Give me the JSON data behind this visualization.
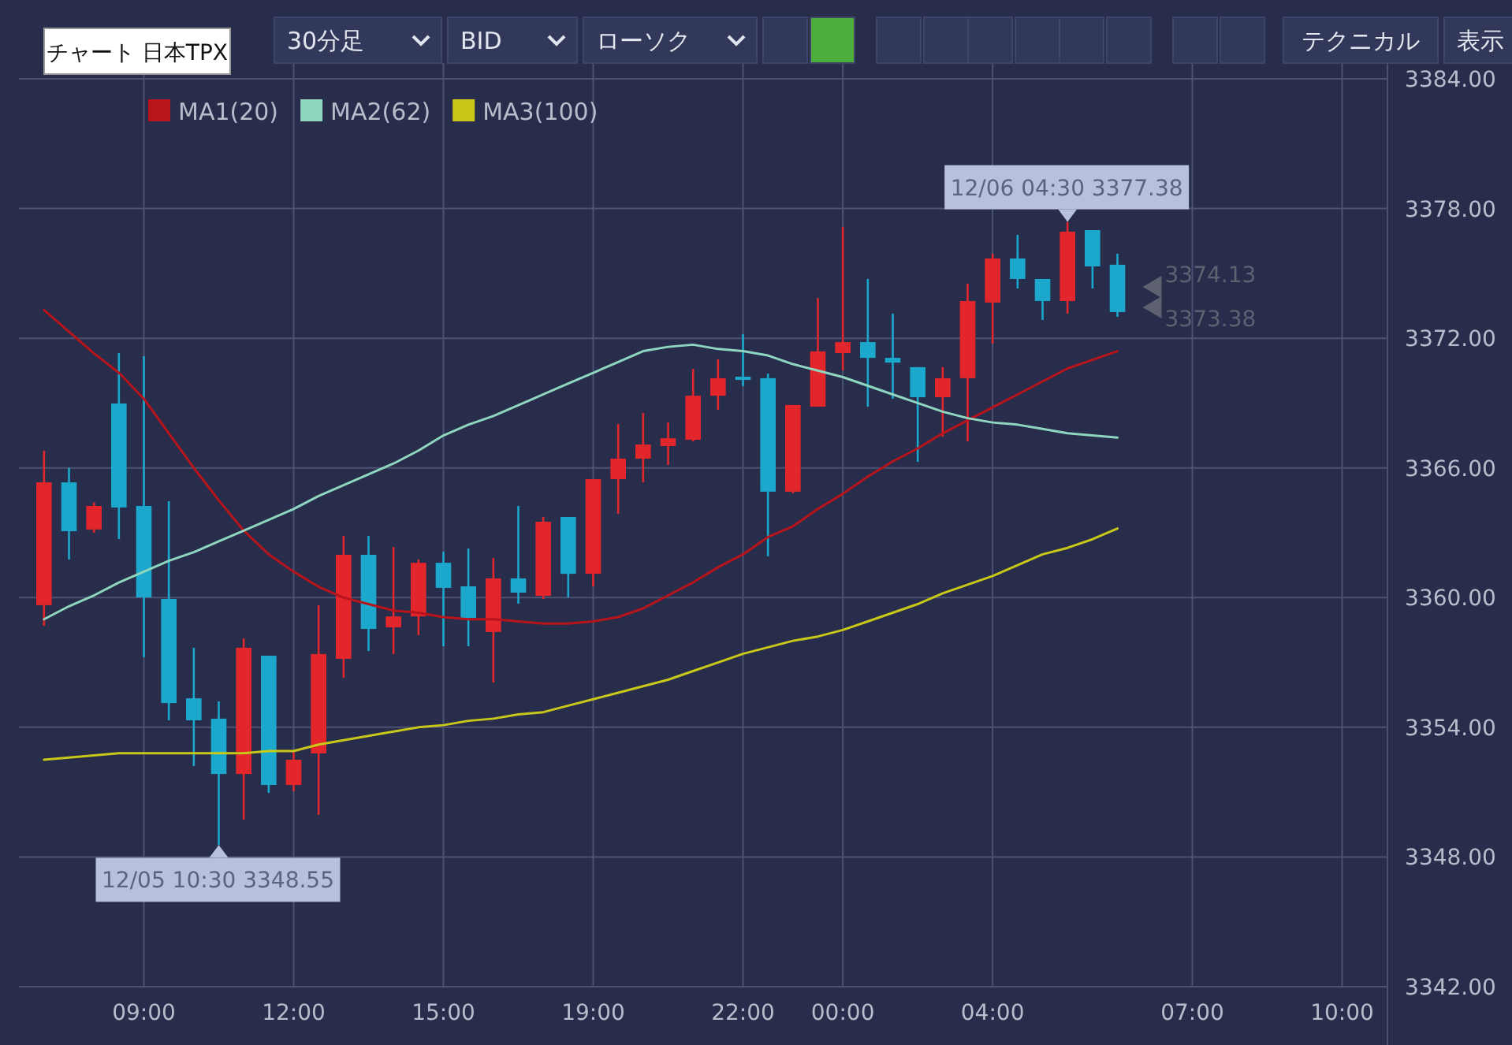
{
  "chart_data": {
    "type": "candlestick",
    "title": "チャート 日本TPX",
    "annotations": [
      {
        "text": "12/05 10:30 3348.55",
        "y": 3348.55
      },
      {
        "text": "12/06 04:30 3377.38",
        "y": 3377.38
      },
      "3374.13",
      "3373.38",
      "30分足",
      "BID",
      "ローソク",
      "テクニカル",
      "表示"
    ],
    "categories": [
      null,
      null,
      null,
      null,
      "09:00",
      null,
      null,
      null,
      null,
      null,
      "12:00",
      null,
      null,
      null,
      null,
      null,
      "15:00",
      null,
      null,
      null,
      null,
      null,
      "19:00",
      null,
      null,
      null,
      null,
      null,
      "22:00",
      null,
      null,
      null,
      "00:00",
      null,
      null,
      null,
      null,
      null,
      "04:00",
      null,
      null,
      null,
      null,
      null,
      null,
      null,
      "07:00",
      null,
      null,
      null,
      null,
      null,
      "10:00"
    ],
    "ohlc": [
      [
        3359.65,
        3366.8,
        3358.7,
        3365.33
      ],
      [
        3365.33,
        3366.0,
        3361.76,
        3363.07
      ],
      [
        3363.15,
        3364.4,
        3363.0,
        3364.24
      ],
      [
        3368.98,
        3371.31,
        3362.71,
        3364.17
      ],
      [
        3364.24,
        3371.17,
        3357.24,
        3360.01
      ],
      [
        3359.94,
        3364.46,
        3354.32,
        3355.12
      ],
      [
        3355.34,
        3357.68,
        3352.21,
        3354.32
      ],
      [
        3354.4,
        3355.2,
        3348.55,
        3351.84
      ],
      [
        3351.84,
        3358.11,
        3349.73,
        3357.68
      ],
      [
        3357.31,
        3357.31,
        3350.97,
        3351.33
      ],
      [
        3351.33,
        3352.86,
        3351.04,
        3352.5
      ],
      [
        3352.79,
        3359.65,
        3349.95,
        3357.39
      ],
      [
        3357.17,
        3362.85,
        3356.29,
        3361.98
      ],
      [
        3361.98,
        3362.85,
        3357.53,
        3358.55
      ],
      [
        3358.62,
        3362.34,
        3357.39,
        3359.13
      ],
      [
        3359.13,
        3361.76,
        3358.26,
        3361.61
      ],
      [
        3361.61,
        3362.12,
        3357.75,
        3360.45
      ],
      [
        3360.52,
        3362.27,
        3357.75,
        3359.06
      ],
      [
        3358.41,
        3361.83,
        3356.07,
        3360.89
      ],
      [
        3360.89,
        3364.24,
        3359.72,
        3360.23
      ],
      [
        3360.08,
        3363.73,
        3359.94,
        3363.51
      ],
      [
        3363.73,
        3363.73,
        3360.01,
        3361.1
      ],
      [
        3361.1,
        3365.48,
        3360.52,
        3365.48
      ],
      [
        3365.48,
        3368.03,
        3363.87,
        3366.43
      ],
      [
        3366.43,
        3368.54,
        3365.33,
        3367.08
      ],
      [
        3367.01,
        3368.1,
        3366.13,
        3367.37
      ],
      [
        3367.3,
        3370.58,
        3367.23,
        3369.34
      ],
      [
        3369.34,
        3371.02,
        3368.69,
        3370.15
      ],
      [
        3370.22,
        3372.19,
        3369.78,
        3370.07
      ],
      [
        3370.15,
        3370.36,
        3361.91,
        3364.9
      ],
      [
        3364.9,
        3368.91,
        3364.82,
        3368.91
      ],
      [
        3368.83,
        3373.86,
        3368.83,
        3371.39
      ],
      [
        3371.31,
        3377.15,
        3370.51,
        3371.82
      ],
      [
        3371.82,
        3374.74,
        3368.83,
        3371.09
      ],
      [
        3371.09,
        3373.14,
        3369.2,
        3370.87
      ],
      [
        3370.66,
        3370.66,
        3366.28,
        3369.27
      ],
      [
        3369.27,
        3370.66,
        3367.45,
        3370.15
      ],
      [
        3370.15,
        3374.52,
        3367.23,
        3373.72
      ],
      [
        3373.65,
        3375.91,
        3371.75,
        3375.69
      ],
      [
        3375.69,
        3376.78,
        3374.3,
        3374.74
      ],
      [
        3374.74,
        3374.74,
        3372.84,
        3373.72
      ],
      [
        3373.72,
        3377.38,
        3373.14,
        3376.93
      ],
      [
        3377.0,
        3377.0,
        3374.3,
        3375.32
      ],
      [
        3375.4,
        3375.91,
        3372.99,
        3373.21
      ],
      null,
      null,
      null,
      null,
      null,
      null,
      null,
      null,
      null
    ],
    "colors": [
      "#e3262b",
      "#1ba8cc",
      "#e3262b",
      "#1ba8cc",
      "#1ba8cc",
      "#1ba8cc",
      "#1ba8cc",
      "#1ba8cc",
      "#e3262b",
      "#1ba8cc",
      "#e3262b",
      "#e3262b",
      "#e3262b",
      "#1ba8cc",
      "#e3262b",
      "#e3262b",
      "#1ba8cc",
      "#1ba8cc",
      "#e3262b",
      "#1ba8cc",
      "#e3262b",
      "#1ba8cc",
      "#e3262b",
      "#e3262b",
      "#e3262b",
      "#e3262b",
      "#e3262b",
      "#e3262b",
      "#1ba8cc",
      "#1ba8cc",
      "#e3262b",
      "#e3262b",
      "#e3262b",
      "#1ba8cc",
      "#1ba8cc",
      "#1ba8cc",
      "#e3262b",
      "#e3262b",
      "#e3262b",
      "#1ba8cc",
      "#1ba8cc",
      "#e3262b",
      "#1ba8cc",
      "#1ba8cc",
      null,
      null,
      null,
      null,
      null,
      null,
      null,
      null,
      null
    ],
    "series": [
      {
        "type": "line",
        "name": "MA1(20)",
        "color": "#b8141c",
        "values": [
          3373.3,
          3372.3,
          3371.3,
          3370.4,
          3369.2,
          3367.6,
          3366.0,
          3364.5,
          3363.1,
          3362.0,
          3361.2,
          3360.5,
          3360.0,
          3359.7,
          3359.4,
          3359.3,
          3359.1,
          3359.0,
          3359.0,
          3358.9,
          3358.8,
          3358.8,
          3358.9,
          3359.1,
          3359.5,
          3360.1,
          3360.7,
          3361.4,
          3362.0,
          3362.8,
          3363.3,
          3364.1,
          3364.8,
          3365.6,
          3366.3,
          3366.9,
          3367.6,
          3368.2,
          3368.8,
          3369.4,
          3370.0,
          3370.6,
          3371.0,
          3371.4,
          null,
          null,
          null,
          null,
          null,
          null,
          null,
          null,
          null
        ]
      },
      {
        "type": "line",
        "name": "MA2(62)",
        "color": "#8fd6c0",
        "values": [
          3359.0,
          3359.6,
          3360.1,
          3360.7,
          3361.2,
          3361.7,
          3362.1,
          3362.6,
          3363.1,
          3363.6,
          3364.1,
          3364.7,
          3365.2,
          3365.7,
          3366.2,
          3366.8,
          3367.5,
          3368.0,
          3368.4,
          3368.9,
          3369.4,
          3369.9,
          3370.4,
          3370.9,
          3371.4,
          3371.6,
          3371.7,
          3371.5,
          3371.4,
          3371.2,
          3370.8,
          3370.5,
          3370.2,
          3369.8,
          3369.4,
          3369.0,
          3368.6,
          3368.3,
          3368.1,
          3368.0,
          3367.8,
          3367.6,
          3367.5,
          3367.4,
          null,
          null,
          null,
          null,
          null,
          null,
          null,
          null,
          null
        ]
      },
      {
        "type": "line",
        "name": "MA3(100)",
        "color": "#c9c718",
        "values": [
          3352.5,
          3352.6,
          3352.7,
          3352.8,
          3352.8,
          3352.8,
          3352.8,
          3352.8,
          3352.8,
          3352.9,
          3352.9,
          3353.2,
          3353.4,
          3353.6,
          3353.8,
          3354.0,
          3354.1,
          3354.3,
          3354.4,
          3354.6,
          3354.7,
          3355.0,
          3355.3,
          3355.6,
          3355.9,
          3356.2,
          3356.6,
          3357.0,
          3357.4,
          3357.7,
          3358.0,
          3358.2,
          3358.5,
          3358.9,
          3359.3,
          3359.7,
          3360.2,
          3360.6,
          3361.0,
          3361.5,
          3362.0,
          3362.3,
          3362.7,
          3363.2,
          null,
          null,
          null,
          null,
          null,
          null,
          null,
          null,
          null
        ]
      }
    ],
    "ylim": [
      3342,
      3384
    ],
    "yticks": [
      {
        "value": 3342,
        "label": "3342.00"
      },
      {
        "value": 3348,
        "label": "3348.00"
      },
      {
        "value": 3354,
        "label": "3354.00"
      },
      {
        "value": 3360,
        "label": "3360.00"
      },
      {
        "value": 3366,
        "label": "3366.00"
      },
      {
        "value": 3372,
        "label": "3372.00"
      },
      {
        "value": 3378,
        "label": "3378.00"
      },
      {
        "value": 3384,
        "label": "3384.00"
      }
    ],
    "grid": true,
    "legend": "top left",
    "marker": "none",
    "line_style": "solid"
  }
}
